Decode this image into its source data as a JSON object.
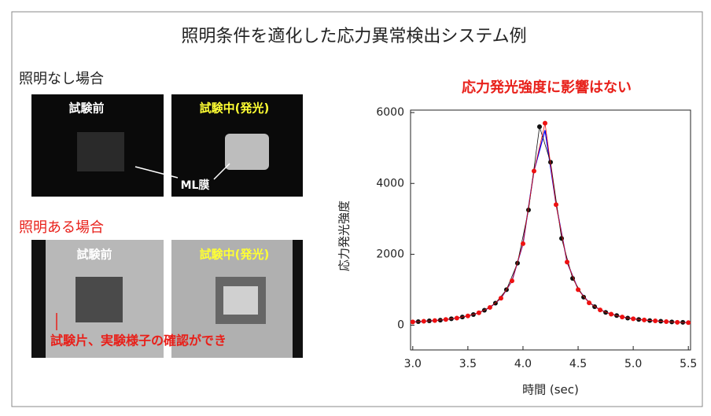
{
  "title": "照明条件を適化した応力異常検出システム例",
  "panels": [
    {
      "heading": "照明なし場合",
      "images": [
        {
          "label": "試験前"
        },
        {
          "label": "試験中(発光)"
        }
      ],
      "annotation": "ML膜"
    },
    {
      "heading": "照明ある場合",
      "images": [
        {
          "label": "試験前"
        },
        {
          "label": "試験中(発光)"
        }
      ],
      "annotation": "試験片、実験様子の確認ができ"
    }
  ],
  "chart_data": {
    "type": "line",
    "title": "応力発光強度に影響はない",
    "x_label": "時間 (sec)",
    "y_label": "応力発光強度",
    "xlim": [
      2.98,
      5.52
    ],
    "ylim": [
      -700,
      6070
    ],
    "xticks": [
      {
        "value": 3,
        "label": "3.0"
      },
      {
        "value": 3.5,
        "label": "3.5"
      },
      {
        "value": 4,
        "label": "4.0"
      },
      {
        "value": 4.5,
        "label": "4.5"
      },
      {
        "value": 5,
        "label": "5.0"
      },
      {
        "value": 5.5,
        "label": "5.5"
      }
    ],
    "yticks": [
      0,
      2000,
      4000,
      6000
    ],
    "series": [
      {
        "color": "#0000ee",
        "marker": false,
        "x": [
          3.0,
          3.1,
          3.2,
          3.3,
          3.4,
          3.5,
          3.6,
          3.7,
          3.8,
          3.9,
          4.0,
          4.1,
          4.2,
          4.3,
          4.4,
          4.5,
          4.6,
          4.7,
          4.8,
          4.9,
          5.0,
          5.1,
          5.2,
          5.3,
          5.4,
          5.5
        ],
        "values": [
          89,
          106,
          128,
          158,
          200,
          260,
          351,
          498,
          755,
          1249,
          2295,
          4361,
          5502,
          3415,
          1777,
          1009,
          633,
          430,
          310,
          233,
          181,
          145,
          119,
          99,
          83,
          71
        ]
      },
      {
        "color": "#111111",
        "marker": true,
        "x": [
          3.05,
          3.15,
          3.25,
          3.35,
          3.45,
          3.55,
          3.65,
          3.75,
          3.85,
          3.95,
          4.05,
          4.15,
          4.25,
          4.35,
          4.45,
          4.55,
          4.65,
          4.75,
          4.85,
          4.95,
          5.05,
          5.15,
          5.25,
          5.35,
          5.45
        ],
        "values": [
          100,
          120,
          140,
          180,
          230,
          300,
          420,
          620,
          1000,
          1750,
          3250,
          5600,
          4600,
          2450,
          1320,
          790,
          520,
          360,
          270,
          200,
          160,
          130,
          110,
          90,
          80
        ]
      },
      {
        "color": "#ee1111",
        "marker": true,
        "x": [
          3.0,
          3.1,
          3.2,
          3.3,
          3.4,
          3.5,
          3.6,
          3.7,
          3.8,
          3.9,
          4.0,
          4.1,
          4.2,
          4.3,
          4.4,
          4.5,
          4.6,
          4.7,
          4.8,
          4.9,
          5.0,
          5.1,
          5.2,
          5.3,
          5.4,
          5.5
        ],
        "values": [
          90,
          110,
          130,
          160,
          200,
          260,
          350,
          500,
          760,
          1250,
          2300,
          4350,
          5700,
          3400,
          1780,
          1000,
          630,
          430,
          310,
          230,
          180,
          145,
          120,
          100,
          80,
          70
        ]
      }
    ]
  }
}
